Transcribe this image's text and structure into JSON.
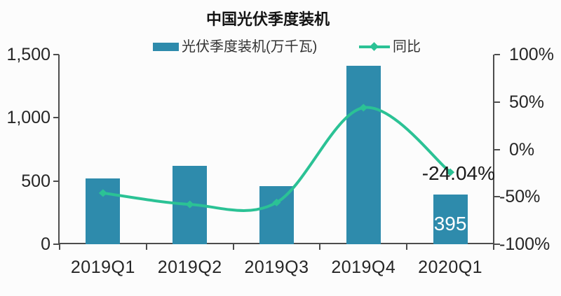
{
  "title": "中国光伏季度装机",
  "legend": {
    "bar_label": "光伏季度装机(万千瓦)",
    "line_label": "同比"
  },
  "colors": {
    "bar": "#2E8BAC",
    "line": "#2BC295",
    "axis": "#4D4D4D",
    "text": "#262626"
  },
  "chart_data": {
    "type": "combo",
    "title": "中国光伏季度装机",
    "categories": [
      "2019Q1",
      "2019Q2",
      "2019Q3",
      "2019Q4",
      "2020Q1"
    ],
    "series": [
      {
        "name": "光伏季度装机(万千瓦)",
        "type": "bar",
        "axis": "left",
        "unit": "万千瓦",
        "color": "#2E8BAC",
        "values": [
          520,
          620,
          460,
          1410,
          395
        ]
      },
      {
        "name": "同比",
        "type": "line",
        "axis": "right",
        "unit": "%",
        "color": "#2BC295",
        "values": [
          -46,
          -58,
          -56,
          44,
          -24.04
        ]
      }
    ],
    "left_axis": {
      "min": 0,
      "max": 1500,
      "tick_values": [
        1500,
        1000,
        500,
        0
      ],
      "tick_labels": [
        "1,500",
        "1,000",
        "500",
        "0"
      ]
    },
    "right_axis": {
      "min": -100,
      "max": 100,
      "tick_values": [
        100,
        50,
        0,
        -50,
        -100
      ],
      "tick_labels": [
        "100%",
        "50%",
        "0%",
        "-50%",
        "-100%"
      ]
    },
    "legend_position": "top",
    "grid": false,
    "smooth_line": true,
    "annotations": [
      {
        "text": "395",
        "color": "#FFFFFF",
        "attach": "bar-2020Q1"
      },
      {
        "text": "-24.04%",
        "color": "#1A1A1A",
        "attach": "line-point-2020Q1"
      }
    ]
  }
}
